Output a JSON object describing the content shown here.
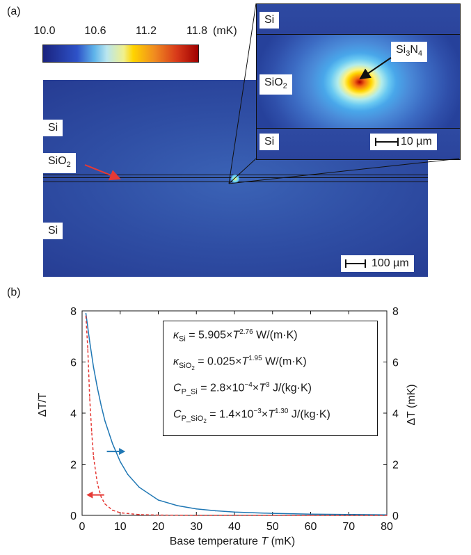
{
  "panels": {
    "a": "(a)",
    "b": "(b)"
  },
  "colorbar": {
    "ticks": [
      "10.0",
      "10.6",
      "11.2",
      "11.8"
    ],
    "tick_values": [
      10.0,
      10.6,
      11.2,
      11.8
    ],
    "range": [
      10.0,
      11.8
    ],
    "unit": "(mK)"
  },
  "sim": {
    "si_top": "Si",
    "sio2": "SiO",
    "sio2_sub": "2",
    "si_bottom": "Si",
    "scale_bar": "100 µm",
    "inset": {
      "si_top": "Si",
      "sio2": "SiO",
      "sio2_sub": "2",
      "si_bottom": "Si",
      "core_si": "Si",
      "core_sub1": "3",
      "core_n": "N",
      "core_sub2": "4",
      "scale_bar": "10 µm"
    }
  },
  "colors": {
    "temperature_curve": "#1f77b4",
    "ratio_curve": "#e53935",
    "sio2_arrow": "#e53935"
  },
  "chart_data": {
    "type": "line",
    "xlabel_main": "Base temperature ",
    "xlabel_var": "T",
    "xlabel_unit": " (mK)",
    "ylabel_left": "ΔT/T",
    "ylabel_right": "ΔT (mK)",
    "xlim": [
      0,
      80
    ],
    "ylim_left": [
      0,
      8
    ],
    "ylim_right": [
      0,
      8
    ],
    "x_ticks": [
      "0",
      "10",
      "20",
      "30",
      "40",
      "50",
      "60",
      "70",
      "80"
    ],
    "y_ticks_left": [
      "0",
      "2",
      "4",
      "6",
      "8"
    ],
    "y_ticks_right": [
      "0",
      "2",
      "4",
      "6",
      "8"
    ],
    "series": [
      {
        "axis": "right",
        "style": "solid",
        "color": "#1f77b4",
        "x": [
          1,
          2,
          3,
          4,
          5,
          6,
          8,
          10,
          12,
          15,
          20,
          25,
          30,
          35,
          40,
          45,
          50,
          60,
          70,
          80
        ],
        "y": [
          7.9,
          6.8,
          5.8,
          5.0,
          4.3,
          3.7,
          2.8,
          2.1,
          1.6,
          1.1,
          0.6,
          0.38,
          0.25,
          0.18,
          0.13,
          0.1,
          0.08,
          0.05,
          0.035,
          0.02
        ]
      },
      {
        "axis": "left",
        "style": "dashed",
        "color": "#e53935",
        "x": [
          1,
          1.5,
          2,
          2.5,
          3,
          4,
          5,
          6,
          8,
          10,
          15,
          20,
          30,
          40,
          60,
          80
        ],
        "y": [
          7.8,
          6.5,
          4.6,
          3.3,
          2.3,
          1.25,
          0.72,
          0.45,
          0.2,
          0.1,
          0.03,
          0.01,
          0.0,
          0.0,
          0.0,
          0.0
        ]
      }
    ]
  },
  "legend": {
    "line1": {
      "sym": "κ",
      "sub": "Si",
      "mid": " = 5.905×",
      "var": "T",
      "sup": "2.76",
      "unit": " W/(m·K)"
    },
    "line2": {
      "sym": "κ",
      "sub": "SiO",
      "subsub": "2",
      "mid": " = 0.025×",
      "var": "T",
      "sup": "1.95",
      "unit": " W/(m·K)"
    },
    "line3": {
      "sym": "C",
      "sub": "P_Si",
      "mid": " = 2.8×10",
      "exp": "−4",
      "mid2": "×",
      "var": "T",
      "sup": "3",
      "unit": " J/(kg·K)"
    },
    "line4": {
      "sym": "C",
      "sub": "P_SiO",
      "subsub": "2",
      "mid": " = 1.4×10",
      "exp": "−3",
      "mid2": "×",
      "var": "T",
      "sup": "1.30",
      "unit": " J/(kg·K)"
    }
  }
}
